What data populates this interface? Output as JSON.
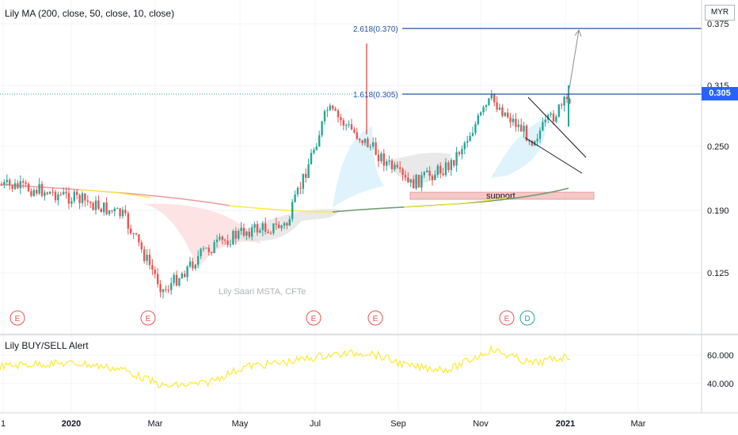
{
  "main_indicator_label": "Lily MA (200, close, 50, close, 10, close)",
  "currency": "MYR",
  "last_price_tag": "0.305",
  "watermark": "Lily Saari  MSTA, CFTe",
  "annotations": {
    "fib_high": "2.618(0.370)",
    "fib_mid": "1.618(0.305)",
    "support": "support"
  },
  "oscillator_label": "Lily BUY/SELL Alert",
  "event_markers": [
    "E",
    "E",
    "E",
    "E",
    "E",
    "D"
  ],
  "colors": {
    "up": "#26a69a",
    "down": "#ef5350",
    "fib": "#1e53a5",
    "yellow": "#ffeb3b",
    "ma_red": "#ef9a9a"
  },
  "chart_data": [
    {
      "type": "line",
      "title": "",
      "price_axis_ticks": [
        "0.375",
        "0.315",
        "0.250",
        "0.190",
        "0.125"
      ],
      "time_axis_ticks": [
        "1",
        "2020",
        "Mar",
        "May",
        "Jul",
        "Sep",
        "Nov",
        "2021",
        "Mar"
      ],
      "series": [
        {
          "name": "close",
          "x": [
            "2019-11",
            "2019-12",
            "2020-01",
            "2020-02",
            "2020-03",
            "2020-04",
            "2020-05",
            "2020-06",
            "2020-07",
            "2020-08",
            "2020-09",
            "2020-10",
            "2020-11",
            "2020-12",
            "2021-01"
          ],
          "values": [
            0.215,
            0.21,
            0.2,
            0.185,
            0.11,
            0.15,
            0.17,
            0.175,
            0.29,
            0.255,
            0.215,
            0.235,
            0.3,
            0.26,
            0.305
          ]
        },
        {
          "name": "MA 200",
          "x": [
            "2019-11",
            "2020-01",
            "2020-03",
            "2020-05",
            "2020-07",
            "2020-09",
            "2020-11",
            "2021-01"
          ],
          "values": [
            0.215,
            0.213,
            0.21,
            0.2,
            0.195,
            0.198,
            0.2,
            0.215
          ]
        }
      ],
      "levels": [
        0.37,
        0.305
      ],
      "support_zone": [
        0.205,
        0.212
      ]
    },
    {
      "type": "line",
      "title": "Lily BUY/SELL Alert",
      "yticks": [
        "60.000",
        "40.000"
      ],
      "series": [
        {
          "name": "",
          "x": [
            "2019-11",
            "2019-12",
            "2020-01",
            "2020-02",
            "2020-03",
            "2020-04",
            "2020-05",
            "2020-06",
            "2020-07",
            "2020-08",
            "2020-09",
            "2020-10",
            "2020-11",
            "2020-12",
            "2021-01"
          ],
          "values": [
            52,
            54,
            54,
            50,
            38,
            40,
            52,
            55,
            60,
            62,
            52,
            50,
            64,
            54,
            60
          ]
        }
      ]
    }
  ]
}
